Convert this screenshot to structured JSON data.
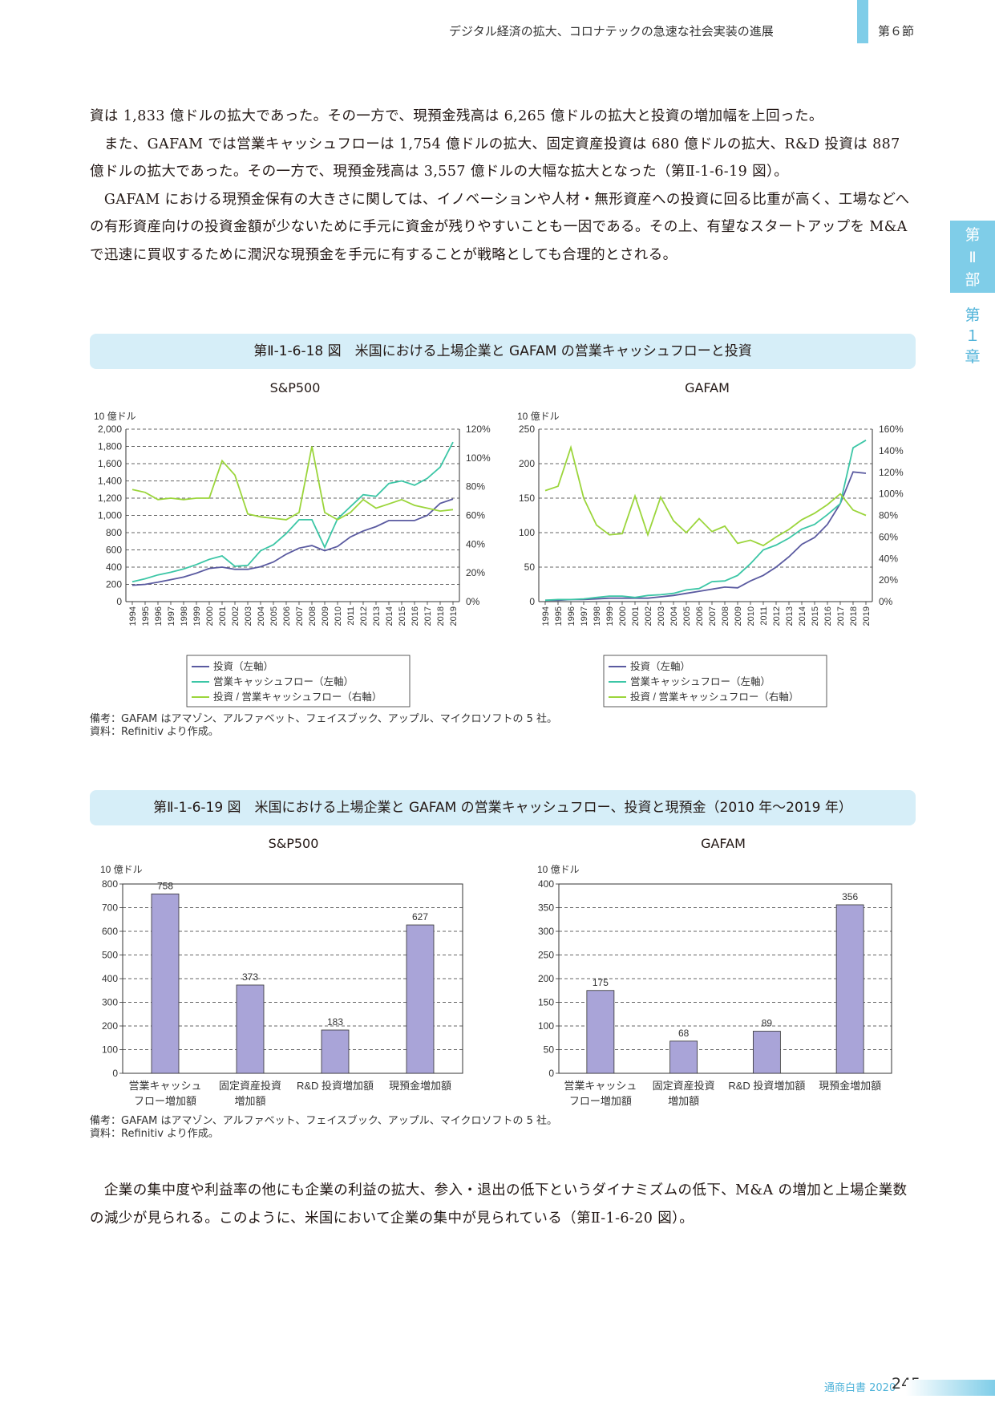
{
  "header": {
    "title": "デジタル経済の拡大、コロナテックの急速な社会実装の進展",
    "section": "第６節"
  },
  "side_tabs": {
    "part": [
      "第",
      "Ⅱ",
      "部"
    ],
    "chapter": [
      "第",
      "１",
      "章"
    ]
  },
  "paragraphs_top": [
    "資は 1,833 億ドルの拡大であった。その一方で、現預金残高は 6,265 億ドルの拡大と投資の増加幅を上回った。",
    "　また、GAFAM では営業キャッシュフローは 1,754 億ドルの拡大、固定資産投資は 680 億ドルの拡大、R&D 投資は 887 億ドルの拡大であった。その一方で、現預金残高は 3,557 億ドルの大幅な拡大となった（第Ⅱ-1-6-19 図）。",
    "　GAFAM における現預金保有の大きさに関しては、イノベーションや人材・無形資産への投資に回る比重が高く、工場などへの有形資産向けの投資金額が少ないために手元に資金が残りやすいことも一因である。その上、有望なスタートアップを M&A で迅速に買収するために潤沢な現預金を手元に有することが戦略としても合理的とされる。"
  ],
  "figure18": {
    "title": "第Ⅱ-1-6-18 図　米国における上場企業と GAFAM の営業キャッシュフローと投資",
    "note1": "備考：GAFAM はアマゾン、アルファベット、フェイスブック、アップル、マイクロソフトの 5 社。",
    "note2": "資料：Refinitiv より作成。"
  },
  "figure19": {
    "title": "第Ⅱ-1-6-19 図　米国における上場企業と GAFAM の営業キャッシュフロー、投資と現預金（2010 年〜2019 年）",
    "note1": "備考：GAFAM はアマゾン、アルファベット、フェイスブック、アップル、マイクロソフトの 5 社。",
    "note2": "資料：Refinitiv より作成。"
  },
  "paragraph_bottom": "　企業の集中度や利益率の他にも企業の利益の拡大、参入・退出の低下というダイナミズムの低下、M&A の増加と上場企業数の減少が見られる。このように、米国において企業の集中が見られている（第Ⅱ-1-6-20 図）。",
  "footer": {
    "title": "通商白書 2020",
    "page": "245"
  },
  "colors": {
    "invest": "#5a5aa0",
    "cashflow": "#3cc6a6",
    "ratio": "#9bd53b",
    "bar": "#a9a4d8",
    "accent": "#7fcde8",
    "fig_bg": "#d6eef8"
  },
  "chart_data": [
    {
      "type": "line",
      "title": "S&P500",
      "unit_left": "10 億ドル",
      "x": [
        "1994",
        "1995",
        "1996",
        "1997",
        "1998",
        "1999",
        "2000",
        "2001",
        "2002",
        "2003",
        "2004",
        "2005",
        "2006",
        "2007",
        "2008",
        "2009",
        "2010",
        "2011",
        "2012",
        "2013",
        "2014",
        "2015",
        "2016",
        "2017",
        "2018",
        "2019"
      ],
      "ylim_left": [
        0,
        2000
      ],
      "yticks_left": [
        "0",
        "200",
        "400",
        "600",
        "800",
        "1,000",
        "1,200",
        "1,400",
        "1,600",
        "1,800",
        "2,000"
      ],
      "ylim_right": [
        0,
        120
      ],
      "yticks_right": [
        "0%",
        "20%",
        "40%",
        "60%",
        "80%",
        "100%",
        "120%"
      ],
      "grid": "dashed horizontal",
      "series": [
        {
          "name": "投資（左軸）",
          "axis": "left",
          "values": [
            190,
            200,
            225,
            255,
            285,
            330,
            385,
            400,
            375,
            375,
            405,
            460,
            550,
            620,
            650,
            590,
            640,
            750,
            820,
            870,
            940,
            940,
            940,
            1000,
            1140,
            1190
          ]
        },
        {
          "name": "営業キャッシュフロー（左軸）",
          "axis": "left",
          "values": [
            230,
            265,
            310,
            340,
            380,
            430,
            490,
            530,
            410,
            420,
            590,
            660,
            790,
            950,
            950,
            630,
            960,
            1100,
            1240,
            1220,
            1370,
            1400,
            1350,
            1430,
            1560,
            1850
          ]
        },
        {
          "name": "投資 / 営業キャッシュフロー（右軸）",
          "axis": "right",
          "values": [
            78,
            76,
            71,
            72,
            71,
            72,
            72,
            98,
            88,
            61,
            59,
            58,
            57,
            62,
            108,
            62,
            57,
            62,
            71,
            65,
            68,
            71,
            67,
            65,
            63,
            64
          ]
        }
      ]
    },
    {
      "type": "line",
      "title": "GAFAM",
      "unit_left": "10 億ドル",
      "x": [
        "1994",
        "1995",
        "1996",
        "1997",
        "1998",
        "1999",
        "2000",
        "2001",
        "2002",
        "2003",
        "2004",
        "2005",
        "2006",
        "2007",
        "2008",
        "2009",
        "2010",
        "2011",
        "2012",
        "2013",
        "2014",
        "2015",
        "2016",
        "2017",
        "2018",
        "2019"
      ],
      "ylim_left": [
        0,
        250
      ],
      "yticks_left": [
        "0",
        "50",
        "100",
        "150",
        "200",
        "250"
      ],
      "ylim_right": [
        0,
        160
      ],
      "yticks_right": [
        "0%",
        "20%",
        "40%",
        "60%",
        "80%",
        "100%",
        "120%",
        "140%",
        "160%"
      ],
      "grid": "dashed horizontal",
      "series": [
        {
          "name": "投資（左軸）",
          "axis": "left",
          "values": [
            2,
            2,
            3,
            3,
            4,
            5,
            5,
            5,
            5,
            7,
            9,
            12,
            15,
            18,
            21,
            20,
            30,
            38,
            50,
            65,
            83,
            93,
            112,
            142,
            188,
            186
          ]
        },
        {
          "name": "営業キャッシュフロー（左軸）",
          "axis": "left",
          "values": [
            2,
            3,
            3,
            4,
            6,
            8,
            8,
            6,
            9,
            10,
            12,
            17,
            19,
            29,
            30,
            38,
            55,
            75,
            82,
            92,
            105,
            112,
            126,
            142,
            223,
            234
          ]
        },
        {
          "name": "投資 / 営業キャッシュフロー（右軸）",
          "axis": "right",
          "values": [
            103,
            107,
            143,
            96,
            71,
            62,
            63,
            98,
            62,
            97,
            75,
            64,
            77,
            65,
            70,
            54,
            57,
            52,
            60,
            67,
            76,
            82,
            90,
            100,
            85,
            80
          ]
        }
      ]
    },
    {
      "type": "bar",
      "title": "S&P500",
      "unit": "10 億ドル",
      "categories": [
        "営業キャッシュ\nフロー増加額",
        "固定資産投資\n増加額",
        "R&D 投資増加額",
        "現預金増加額"
      ],
      "values": [
        758,
        373,
        183,
        627
      ],
      "ylim": [
        0,
        800
      ],
      "yticks": [
        "0",
        "100",
        "200",
        "300",
        "400",
        "500",
        "600",
        "700",
        "800"
      ]
    },
    {
      "type": "bar",
      "title": "GAFAM",
      "unit": "10 億ドル",
      "categories": [
        "営業キャッシュ\nフロー増加額",
        "固定資産投資\n増加額",
        "R&D 投資増加額",
        "現預金増加額"
      ],
      "values": [
        175,
        68,
        89,
        356
      ],
      "ylim": [
        0,
        400
      ],
      "yticks": [
        "0",
        "50",
        "100",
        "150",
        "200",
        "250",
        "300",
        "350",
        "400"
      ]
    }
  ]
}
